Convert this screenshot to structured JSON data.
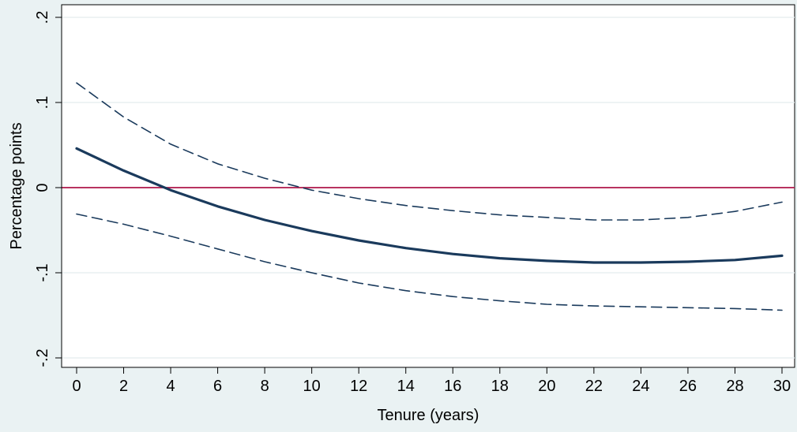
{
  "chart_data": {
    "type": "line",
    "title": "",
    "xlabel": "Tenure (years)",
    "ylabel": "Percentage points",
    "xlim": [
      0,
      30
    ],
    "ylim": [
      -0.2,
      0.2
    ],
    "xticks": [
      0,
      2,
      4,
      6,
      8,
      10,
      12,
      14,
      16,
      18,
      20,
      22,
      24,
      26,
      28,
      30
    ],
    "xtick_labels": [
      "0",
      "2",
      "4",
      "6",
      "8",
      "10",
      "12",
      "14",
      "16",
      "18",
      "20",
      "22",
      "24",
      "26",
      "28",
      "30"
    ],
    "yticks": [
      -0.2,
      -0.1,
      0,
      0.1,
      0.2
    ],
    "ytick_labels": [
      "-.2",
      "-.1",
      "0",
      ".1",
      ".2"
    ],
    "grid": true,
    "reference_line": {
      "y": 0,
      "color": "#b0174a"
    },
    "x": [
      0,
      2,
      4,
      6,
      8,
      10,
      12,
      14,
      16,
      18,
      20,
      22,
      24,
      26,
      28,
      30
    ],
    "series": [
      {
        "role": "estimate",
        "color": "#1a3a5c",
        "style": "solid",
        "values": [
          0.046,
          0.02,
          -0.003,
          -0.022,
          -0.038,
          -0.051,
          -0.062,
          -0.071,
          -0.078,
          -0.083,
          -0.086,
          -0.088,
          -0.088,
          -0.087,
          -0.085,
          -0.08
        ]
      },
      {
        "role": "upper-ci",
        "color": "#1a3a5c",
        "style": "dashed",
        "values": [
          0.123,
          0.083,
          0.051,
          0.028,
          0.011,
          -0.003,
          -0.013,
          -0.021,
          -0.027,
          -0.032,
          -0.035,
          -0.038,
          -0.038,
          -0.035,
          -0.028,
          -0.017
        ]
      },
      {
        "role": "lower-ci",
        "color": "#1a3a5c",
        "style": "dashed",
        "values": [
          -0.031,
          -0.043,
          -0.057,
          -0.072,
          -0.087,
          -0.1,
          -0.112,
          -0.121,
          -0.128,
          -0.133,
          -0.137,
          -0.139,
          -0.14,
          -0.141,
          -0.142,
          -0.144
        ]
      }
    ]
  },
  "colors": {
    "background": "#eaf2f3",
    "plot_area": "#ffffff",
    "grid": "#e8eff0",
    "line": "#1a3a5c",
    "zero_line": "#b0174a"
  }
}
